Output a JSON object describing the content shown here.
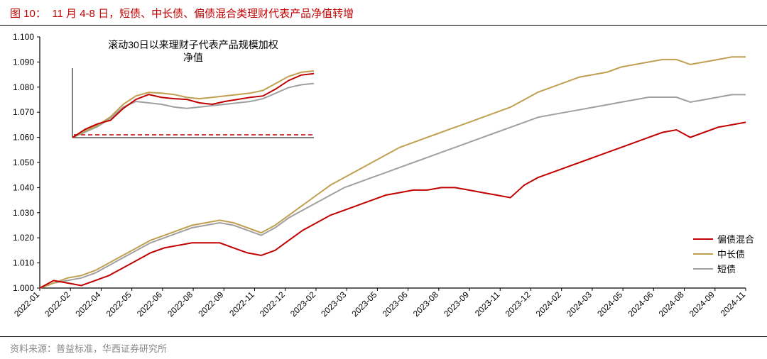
{
  "figure": {
    "label": "图 10：",
    "title": "11 月 4-8 日，短债、中长债、偏债混合类理财代表产品净值转增",
    "source": "资料来源：普益标准，华西证券研究所"
  },
  "main_chart": {
    "type": "line",
    "background_color": "#ffffff",
    "axis_color": "#000000",
    "ylim": [
      1.0,
      1.1
    ],
    "ytick_step": 0.01,
    "yticks": [
      "1.000",
      "1.010",
      "1.020",
      "1.030",
      "1.040",
      "1.050",
      "1.060",
      "1.070",
      "1.080",
      "1.090",
      "1.100"
    ],
    "xticks": [
      "2022-01",
      "2022-02",
      "2022-04",
      "2022-05",
      "2022-06",
      "2022-08",
      "2022-09",
      "2022-11",
      "2022-12",
      "2023-02",
      "2023-03",
      "2023-05",
      "2023-06",
      "2023-08",
      "2023-09",
      "2023-11",
      "2023-12",
      "2024-02",
      "2024-03",
      "2024-05",
      "2024-06",
      "2024-08",
      "2024-09",
      "2024-11"
    ],
    "series": {
      "pianzhai": {
        "label": "偏债混合",
        "color": "#c00000",
        "line_width": 2,
        "values": [
          1.0,
          1.003,
          1.002,
          1.001,
          1.003,
          1.005,
          1.008,
          1.011,
          1.014,
          1.016,
          1.017,
          1.018,
          1.018,
          1.018,
          1.016,
          1.014,
          1.013,
          1.015,
          1.019,
          1.023,
          1.026,
          1.029,
          1.031,
          1.033,
          1.035,
          1.037,
          1.038,
          1.039,
          1.039,
          1.04,
          1.04,
          1.039,
          1.038,
          1.037,
          1.036,
          1.041,
          1.044,
          1.046,
          1.048,
          1.05,
          1.052,
          1.054,
          1.056,
          1.058,
          1.06,
          1.062,
          1.063,
          1.06,
          1.062,
          1.064,
          1.065,
          1.066
        ]
      },
      "zhongchangzhai": {
        "label": "中长债",
        "color": "#c0a050",
        "line_width": 2,
        "values": [
          1.0,
          1.002,
          1.004,
          1.005,
          1.007,
          1.01,
          1.013,
          1.016,
          1.019,
          1.021,
          1.023,
          1.025,
          1.026,
          1.027,
          1.026,
          1.024,
          1.022,
          1.025,
          1.029,
          1.033,
          1.037,
          1.041,
          1.044,
          1.047,
          1.05,
          1.053,
          1.056,
          1.058,
          1.06,
          1.062,
          1.064,
          1.066,
          1.068,
          1.07,
          1.072,
          1.075,
          1.078,
          1.08,
          1.082,
          1.084,
          1.085,
          1.086,
          1.088,
          1.089,
          1.09,
          1.091,
          1.091,
          1.089,
          1.09,
          1.091,
          1.092,
          1.092
        ]
      },
      "duanzhai": {
        "label": "短债",
        "color": "#a0a0a0",
        "line_width": 2,
        "values": [
          1.0,
          1.002,
          1.003,
          1.004,
          1.006,
          1.009,
          1.012,
          1.015,
          1.018,
          1.02,
          1.022,
          1.024,
          1.025,
          1.026,
          1.025,
          1.023,
          1.021,
          1.024,
          1.028,
          1.031,
          1.034,
          1.037,
          1.04,
          1.042,
          1.044,
          1.046,
          1.048,
          1.05,
          1.052,
          1.054,
          1.056,
          1.058,
          1.06,
          1.062,
          1.064,
          1.066,
          1.068,
          1.069,
          1.07,
          1.071,
          1.072,
          1.073,
          1.074,
          1.075,
          1.076,
          1.076,
          1.076,
          1.074,
          1.075,
          1.076,
          1.077,
          1.077
        ]
      }
    }
  },
  "inset_chart": {
    "type": "line",
    "title": "滚动30日以来理财子代表产品规模加权净值",
    "title_fontsize": 14,
    "background_color": "#ffffff",
    "axis_color": "#000000",
    "baseline_color": "#c00000",
    "baseline_dash": "6,4",
    "series": {
      "pianzhai": {
        "color": "#c00000",
        "line_width": 2,
        "values": [
          0.0,
          0.12,
          0.2,
          0.25,
          0.42,
          0.55,
          0.62,
          0.58,
          0.56,
          0.55,
          0.5,
          0.48,
          0.52,
          0.55,
          0.58,
          0.6,
          0.7,
          0.82,
          0.9,
          0.92
        ]
      },
      "zhongchangzhai": {
        "color": "#c0a050",
        "line_width": 2,
        "values": [
          0.0,
          0.1,
          0.18,
          0.3,
          0.48,
          0.6,
          0.65,
          0.64,
          0.62,
          0.58,
          0.56,
          0.58,
          0.6,
          0.62,
          0.64,
          0.68,
          0.78,
          0.88,
          0.94,
          0.96
        ]
      },
      "duanzhai": {
        "color": "#a0a0a0",
        "line_width": 2,
        "values": [
          0.0,
          0.08,
          0.16,
          0.28,
          0.44,
          0.52,
          0.5,
          0.48,
          0.44,
          0.42,
          0.44,
          0.46,
          0.48,
          0.5,
          0.52,
          0.56,
          0.64,
          0.72,
          0.76,
          0.78
        ]
      }
    }
  },
  "legend": {
    "items": [
      {
        "label": "偏债混合",
        "color": "#c00000"
      },
      {
        "label": "中长债",
        "color": "#c0a050"
      },
      {
        "label": "短债",
        "color": "#a0a0a0"
      }
    ]
  }
}
